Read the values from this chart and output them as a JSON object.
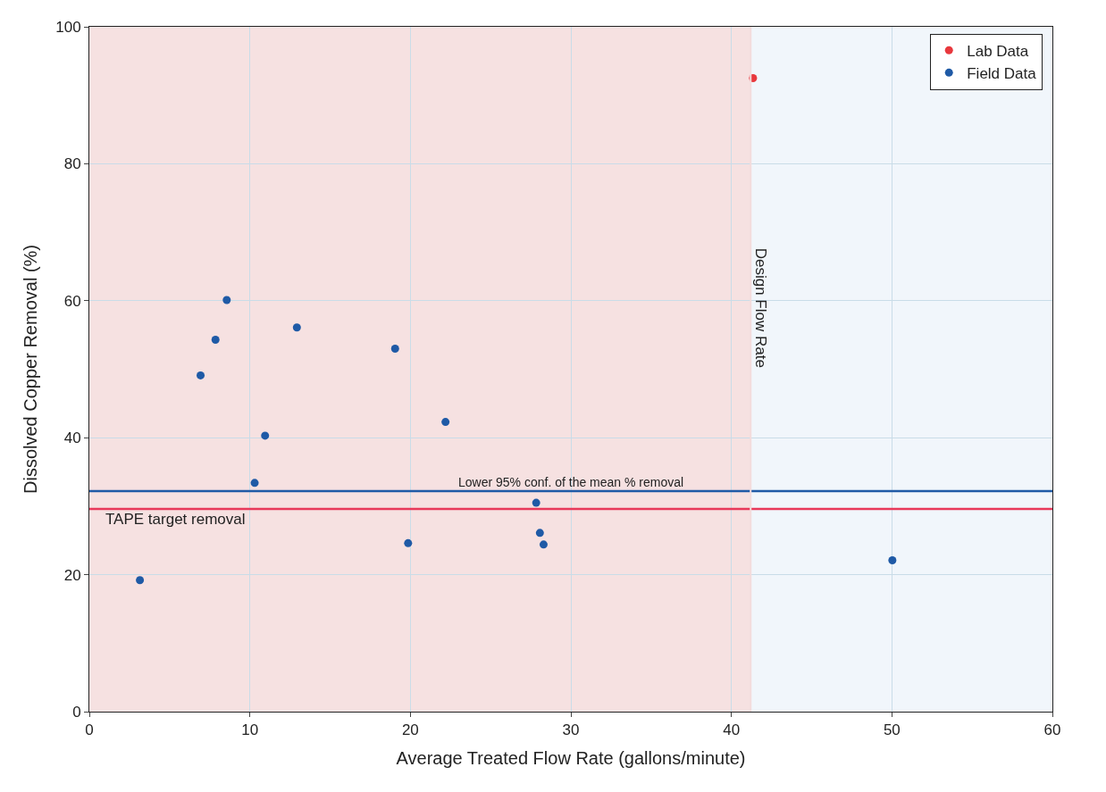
{
  "chart_data": {
    "type": "scatter",
    "xlabel": "Average Treated Flow Rate (gallons/minute)",
    "ylabel": "Dissolved Copper Removal (%)",
    "series": [
      {
        "name": "Lab Data",
        "color": "#e8383d",
        "x": [
          41.35
        ],
        "values": [
          92.5
        ]
      },
      {
        "name": "Field Data",
        "color": "#1f5aa6",
        "x": [
          3.15,
          6.93,
          7.86,
          8.56,
          10.3,
          10.95,
          12.93,
          19.05,
          19.86,
          22.19,
          27.84,
          28.07,
          28.3,
          50.03
        ],
        "values": [
          19.2,
          49.1,
          54.3,
          60.1,
          33.4,
          40.3,
          56.1,
          53.0,
          24.6,
          42.3,
          30.5,
          26.1,
          24.4,
          22.1
        ]
      }
    ],
    "xlim": [
      0,
      60
    ],
    "xticks": [
      0,
      10,
      20,
      30,
      40,
      50,
      60
    ],
    "ylim": [
      0,
      100
    ],
    "yticks": [
      0,
      20,
      40,
      60,
      80,
      100
    ],
    "ref_lines": [
      {
        "axis": "y",
        "value": 32.2,
        "label": "Lower 95% conf. of the mean % removal",
        "color": "#1f5aa6"
      },
      {
        "axis": "y",
        "value": 29.6,
        "label": "TAPE target removal",
        "color": "#e8385a"
      },
      {
        "axis": "x",
        "value": 41.2,
        "label": "Design Flow Rate",
        "color": "#f3dcdc"
      }
    ],
    "bands": [
      {
        "axis": "x",
        "from": 0,
        "to": 41.2,
        "color": "#f6e1e1"
      },
      {
        "axis": "x",
        "from": 41.2,
        "to": 60,
        "color": "#f1f6fb"
      }
    ],
    "grid": true,
    "legend": "top right",
    "marker": "circle"
  }
}
